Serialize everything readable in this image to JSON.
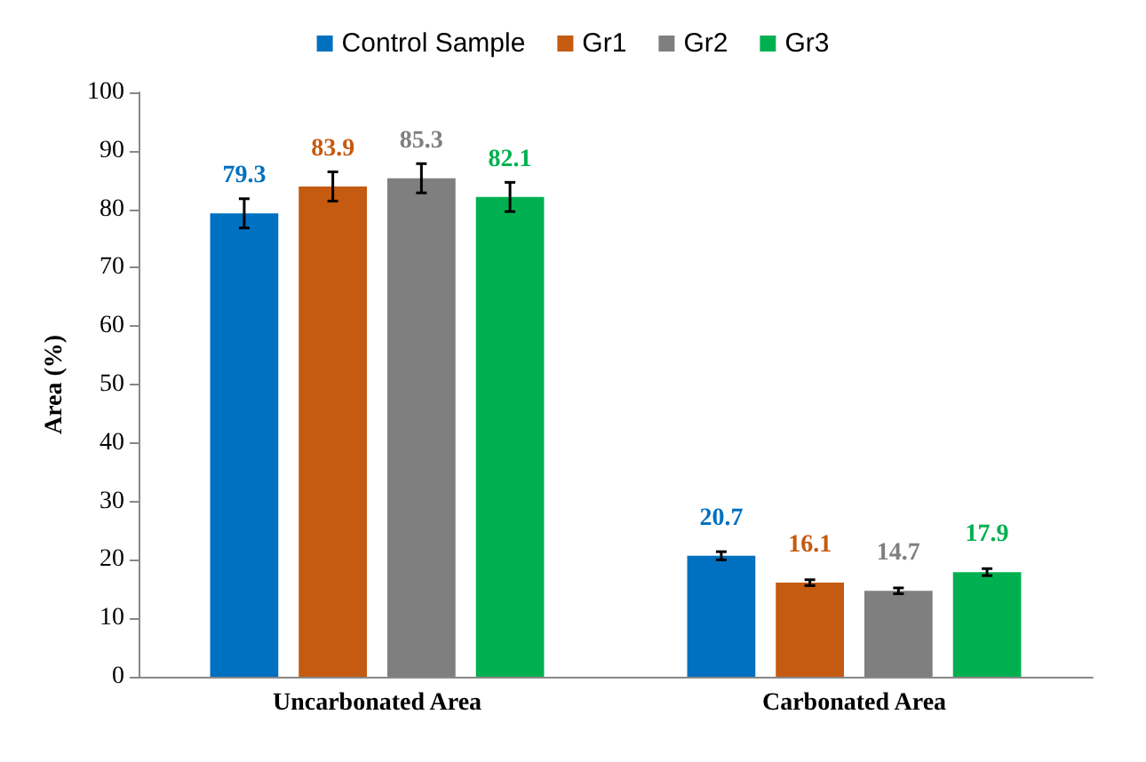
{
  "chart_data": {
    "type": "bar",
    "ylabel": "Area (%)",
    "categories": [
      "Uncarbonated Area",
      "Carbonated Area"
    ],
    "series": [
      {
        "name": "Control Sample",
        "color": "#0070c0",
        "values": [
          79.3,
          20.7
        ],
        "errors": [
          2.5,
          0.7
        ]
      },
      {
        "name": "Gr1",
        "color": "#c55a11",
        "values": [
          83.9,
          16.1
        ],
        "errors": [
          2.5,
          0.5
        ]
      },
      {
        "name": "Gr2",
        "color": "#7f7f7f",
        "values": [
          85.3,
          14.7
        ],
        "errors": [
          2.5,
          0.5
        ]
      },
      {
        "name": "Gr3",
        "color": "#00b050",
        "values": [
          82.1,
          17.9
        ],
        "errors": [
          2.5,
          0.6
        ]
      }
    ],
    "ylim": [
      0,
      100
    ],
    "yticks": [
      0,
      10,
      20,
      30,
      40,
      50,
      60,
      70,
      80,
      90,
      100
    ],
    "grid": false,
    "legend": "top",
    "data_labels": true
  }
}
